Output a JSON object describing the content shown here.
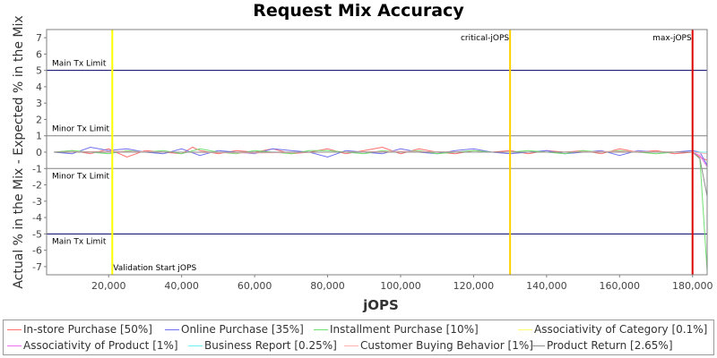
{
  "chart_data": {
    "type": "line",
    "title": "Request Mix Accuracy",
    "xlabel": "jOPS",
    "ylabel": "Actual % in the Mix - Expected % in the Mix",
    "xlim": [
      3000,
      184000
    ],
    "ylim": [
      -7.5,
      7.5
    ],
    "xticks": [
      20000,
      40000,
      60000,
      80000,
      100000,
      120000,
      140000,
      160000,
      180000
    ],
    "xtick_labels": [
      "20,000",
      "40,000",
      "60,000",
      "80,000",
      "100,000",
      "120,000",
      "140,000",
      "160,000",
      "180,000"
    ],
    "yticks": [
      -7,
      -6,
      -5,
      -4,
      -3,
      -2,
      -1,
      0,
      1,
      2,
      3,
      4,
      5,
      6,
      7
    ],
    "grid": false,
    "legend_position": "bottom",
    "horizontal_markers": [
      {
        "label": "Main Tx Limit",
        "value": 5,
        "color": "#000066"
      },
      {
        "label": "Minor Tx Limit",
        "value": 1,
        "color": "#808080"
      },
      {
        "label": "Minor Tx Limit",
        "value": -1,
        "color": "#808080"
      },
      {
        "label": "Main Tx Limit",
        "value": -5,
        "color": "#000066"
      }
    ],
    "vertical_markers": [
      {
        "label": "Validation Start jOPS",
        "value": 21000,
        "color": "#ffff00"
      },
      {
        "label": "critical-jOPS",
        "value": 130000,
        "color": "#ffd000"
      },
      {
        "label": "max-jOPS",
        "value": 180000,
        "color": "#dd0000"
      }
    ],
    "series": [
      {
        "name": "In-store Purchase [50%]",
        "color": "#ff6e6e",
        "x": [
          5000,
          10000,
          15000,
          20000,
          25000,
          30000,
          35000,
          40000,
          43000,
          45000,
          50000,
          55000,
          60000,
          65000,
          70000,
          75000,
          80000,
          85000,
          90000,
          95000,
          100000,
          105000,
          110000,
          115000,
          120000,
          125000,
          130000,
          135000,
          140000,
          145000,
          150000,
          155000,
          160000,
          165000,
          170000,
          175000,
          180000,
          182000,
          184000
        ],
        "y": [
          0,
          0.1,
          -0.1,
          0.2,
          -0.3,
          0.1,
          0,
          -0.1,
          0.3,
          0.1,
          -0.1,
          0.1,
          0,
          0.2,
          -0.1,
          0,
          0.2,
          -0.1,
          0.1,
          0.3,
          -0.1,
          0.2,
          0,
          -0.1,
          0.1,
          0,
          0.1,
          -0.1,
          0.1,
          0,
          0.1,
          -0.1,
          0.2,
          0,
          0.1,
          -0.1,
          0,
          -0.3,
          -0.5
        ]
      },
      {
        "name": "Online Purchase [35%]",
        "color": "#7070f0",
        "x": [
          5000,
          10000,
          15000,
          20000,
          25000,
          30000,
          35000,
          40000,
          45000,
          50000,
          55000,
          60000,
          65000,
          70000,
          75000,
          80000,
          85000,
          90000,
          95000,
          100000,
          105000,
          110000,
          115000,
          120000,
          125000,
          130000,
          135000,
          140000,
          145000,
          150000,
          155000,
          160000,
          165000,
          170000,
          175000,
          180000,
          182000,
          184000
        ],
        "y": [
          0,
          -0.1,
          0.3,
          0.1,
          0.2,
          0,
          -0.1,
          0.2,
          -0.2,
          0.1,
          0,
          -0.1,
          0.2,
          0.1,
          0,
          -0.3,
          0.1,
          0,
          -0.1,
          0.2,
          0,
          -0.1,
          0.1,
          0.2,
          0,
          -0.1,
          0,
          0.1,
          -0.1,
          0,
          0.1,
          -0.2,
          0.1,
          0,
          0,
          0.1,
          0,
          -0.8
        ]
      },
      {
        "name": "Installment Purchase [10%]",
        "color": "#70e070",
        "x": [
          5000,
          10000,
          15000,
          20000,
          25000,
          30000,
          35000,
          40000,
          45000,
          50000,
          55000,
          60000,
          65000,
          70000,
          75000,
          80000,
          85000,
          90000,
          95000,
          100000,
          105000,
          110000,
          115000,
          120000,
          125000,
          130000,
          135000,
          140000,
          145000,
          150000,
          155000,
          160000,
          165000,
          170000,
          175000,
          180000,
          182000,
          184000
        ],
        "y": [
          0,
          0.1,
          0,
          -0.1,
          0.1,
          0,
          0.1,
          -0.1,
          0.2,
          0,
          -0.1,
          0.1,
          0,
          -0.1,
          0.1,
          0.1,
          0,
          -0.1,
          0.1,
          0,
          0.1,
          -0.1,
          0,
          0.1,
          0,
          0,
          0.1,
          0,
          -0.1,
          0.1,
          0,
          0.1,
          0,
          -0.1,
          0,
          0,
          -0.4,
          -7.3
        ]
      },
      {
        "name": "Associativity of Category [0.1%]",
        "color": "#ffff70",
        "x": [
          5000,
          20000,
          40000,
          60000,
          80000,
          100000,
          120000,
          140000,
          160000,
          180000,
          184000
        ],
        "y": [
          0,
          0,
          0,
          0,
          0,
          0,
          0,
          0,
          0,
          0,
          0
        ]
      },
      {
        "name": "Associativity of Product [1%]",
        "color": "#f070f0",
        "x": [
          5000,
          20000,
          40000,
          60000,
          80000,
          100000,
          120000,
          140000,
          160000,
          180000,
          182000,
          184000
        ],
        "y": [
          0,
          0,
          0,
          0,
          0,
          0,
          0,
          0,
          0,
          0,
          -0.2,
          -0.9
        ]
      },
      {
        "name": "Business Report [0.25%]",
        "color": "#70f0f0",
        "x": [
          5000,
          20000,
          40000,
          60000,
          80000,
          100000,
          120000,
          140000,
          160000,
          180000,
          184000
        ],
        "y": [
          0,
          0,
          0,
          0,
          0,
          0,
          0,
          0,
          0,
          0,
          0
        ]
      },
      {
        "name": "Customer Buying Behavior [1%]",
        "color": "#ffb4b4",
        "x": [
          5000,
          20000,
          40000,
          60000,
          80000,
          100000,
          120000,
          140000,
          160000,
          180000,
          184000
        ],
        "y": [
          0,
          0.05,
          0,
          -0.05,
          0,
          0.05,
          0,
          0,
          0.05,
          0,
          -0.1
        ]
      },
      {
        "name": "Product Return [2.65%]",
        "color": "#909090",
        "x": [
          5000,
          20000,
          40000,
          60000,
          80000,
          100000,
          120000,
          140000,
          160000,
          180000,
          182000,
          184000
        ],
        "y": [
          0,
          0,
          0,
          0,
          0,
          0,
          0,
          0,
          0,
          0,
          -0.4,
          -2.7
        ]
      }
    ]
  }
}
